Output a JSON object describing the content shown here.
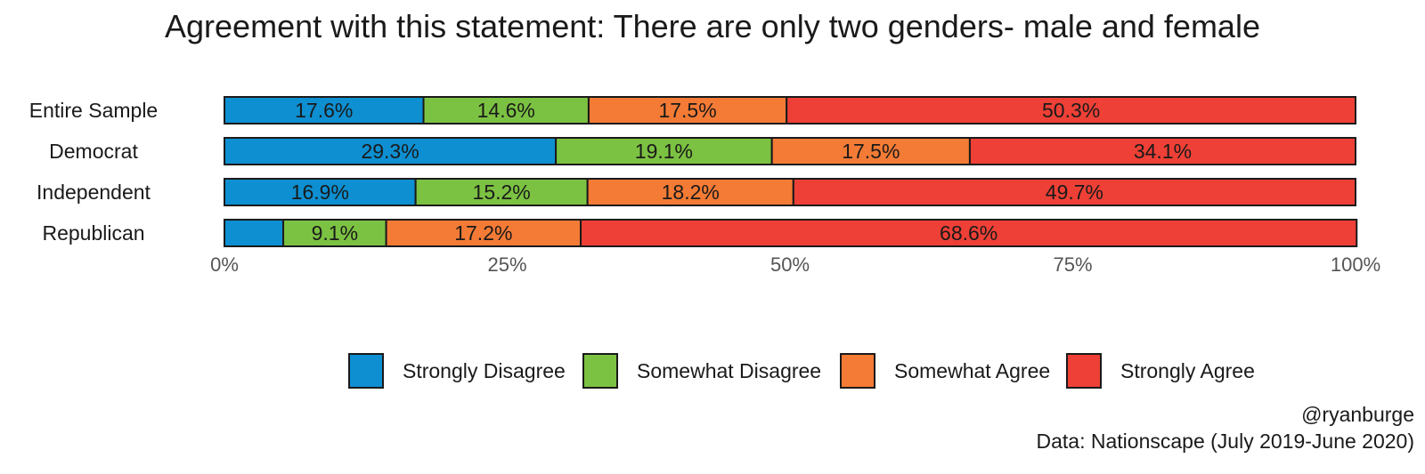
{
  "chart_data": {
    "type": "bar",
    "orientation": "horizontal",
    "stacked": true,
    "normalized": true,
    "title": "Agreement with this statement: There are only two genders- male and female",
    "categories": [
      "Entire Sample",
      "Democrat",
      "Independent",
      "Republican"
    ],
    "series": [
      {
        "name": "Strongly Disagree",
        "color": "#0D8FD1",
        "values": [
          17.6,
          29.3,
          16.9,
          5.2
        ],
        "labels": [
          "17.6%",
          "29.3%",
          "16.9%",
          ""
        ]
      },
      {
        "name": "Somewhat Disagree",
        "color": "#7CC242",
        "values": [
          14.6,
          19.1,
          15.2,
          9.1
        ],
        "labels": [
          "14.6%",
          "19.1%",
          "15.2%",
          "9.1%"
        ]
      },
      {
        "name": "Somewhat Agree",
        "color": "#F47B35",
        "values": [
          17.5,
          17.5,
          18.2,
          17.2
        ],
        "labels": [
          "17.5%",
          "17.5%",
          "18.2%",
          "17.2%"
        ]
      },
      {
        "name": "Strongly Agree",
        "color": "#EE4036",
        "values": [
          50.3,
          34.1,
          49.7,
          68.6
        ],
        "labels": [
          "50.3%",
          "34.1%",
          "49.7%",
          "68.6%"
        ]
      }
    ],
    "x_ticks": [
      "0%",
      "25%",
      "50%",
      "75%",
      "100%"
    ],
    "xlim": [
      0,
      100
    ],
    "grid": false,
    "legend_position": "bottom"
  },
  "caption": {
    "handle": "@ryanburge",
    "source": "Data: Nationscape (July 2019-June 2020)"
  }
}
